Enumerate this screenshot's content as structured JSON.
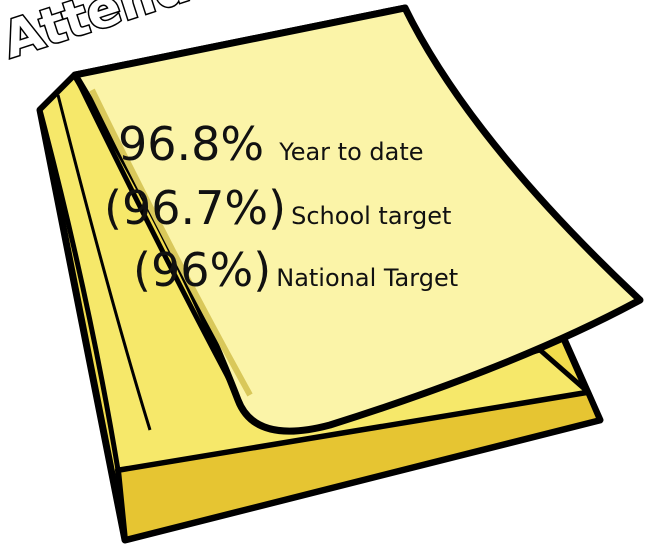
{
  "title": "Attendance",
  "lines": [
    {
      "value": "96.8%",
      "label": "Year to date"
    },
    {
      "value": "(96.7%)",
      "label": "School target"
    },
    {
      "value": "(96%)",
      "label": "National Target"
    }
  ]
}
